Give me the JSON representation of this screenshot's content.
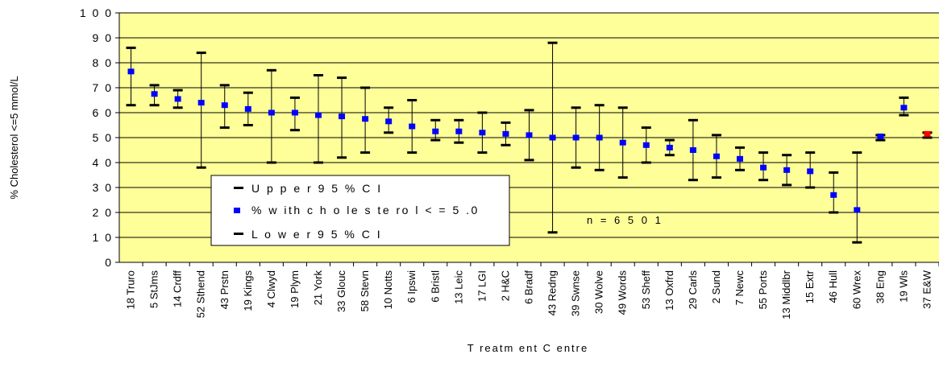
{
  "chart_data": {
    "type": "scatter",
    "ylabel": "% Cholesterol <=5 mmol/L",
    "xlabel": "T reatm ent C entre",
    "ylim": [
      0,
      100
    ],
    "yticks": [
      "0",
      "1 0",
      "2 0",
      "3 0",
      "4 0",
      "5 0",
      "6 0",
      "7 0",
      "8 0",
      "9 0",
      "1 0 0"
    ],
    "ytick_values": [
      0,
      10,
      20,
      30,
      40,
      50,
      60,
      70,
      80,
      90,
      100
    ],
    "grid": true,
    "plot_background": "#ffff99",
    "categories": [
      "18 Truro",
      "5 StJms",
      "14 Crdff",
      "52 Sthend",
      "43 Prstn",
      "19 Kings",
      "4 Clwyd",
      "19 Plym",
      "21 York",
      "33 Glouc",
      "58 Stevn",
      "10 Notts",
      "6 Ipswi",
      "6 Bristl",
      "13 Leic",
      "17 LGI",
      "2 H&C",
      "6 Bradf",
      "43 Redng",
      "39 Swnse",
      "30 Wolve",
      "49 Words",
      "53 Sheff",
      "13 Oxfrd",
      "29 Carls",
      "2 Sund",
      "7 Newc",
      "55 Ports",
      "13 Middlbr",
      "15 Extr",
      "46 Hull",
      "60 Wrex",
      "38 Eng",
      "19 Wls",
      "37 E&W"
    ],
    "series": [
      {
        "name": "U p p e r 9 5 %  C I",
        "values": [
          86,
          71,
          69,
          84,
          71,
          68,
          77,
          66,
          75,
          74,
          70,
          62,
          65,
          57,
          57,
          60,
          56,
          61,
          88,
          62,
          63,
          62,
          54,
          49,
          57,
          51,
          46,
          44,
          43,
          44,
          36,
          44,
          51,
          66,
          52
        ]
      },
      {
        "name": "%  w ith  c h o le s te ro l < =  5 .0",
        "values": [
          76.5,
          67.5,
          65.5,
          64,
          63,
          61.5,
          60,
          60,
          59,
          58.5,
          57.5,
          56.5,
          54.5,
          52.5,
          52.5,
          52,
          51.5,
          51,
          50,
          50,
          50,
          48,
          47,
          46,
          45,
          42.5,
          41.5,
          38,
          37,
          36.5,
          27,
          21,
          50.5,
          62,
          51.5
        ]
      },
      {
        "name": "L o w e r 9 5 %  C I",
        "values": [
          63,
          63,
          62,
          38,
          54,
          55,
          40,
          53,
          40,
          42,
          44,
          52,
          44,
          49,
          48,
          44,
          47,
          41,
          12,
          38,
          37,
          34,
          40,
          43,
          33,
          34,
          37,
          33,
          31,
          30,
          20,
          8,
          49,
          59,
          50
        ]
      }
    ],
    "highlight_point": {
      "category": "37 E&W",
      "color": "#ff0000"
    },
    "marker_color": "#0000ff",
    "whisker_color": "#000000",
    "annotation": "n =  6 5 0 1",
    "legend_placement": "lower-left"
  }
}
